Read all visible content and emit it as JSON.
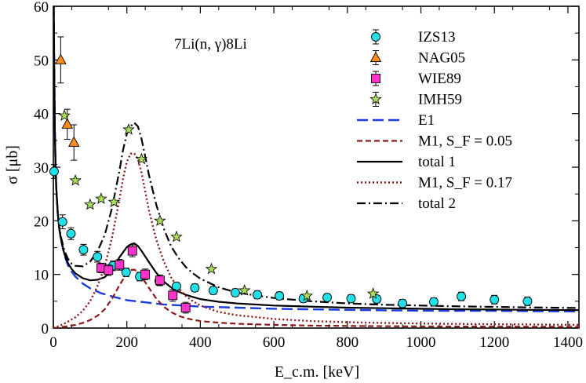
{
  "chart_data": {
    "type": "scatter",
    "annotation": "7Li(n, γ)8Li",
    "xlabel": "E_c.m. [keV]",
    "ylabel": "σ [μb]",
    "xlim": [
      0,
      1430
    ],
    "ylim": [
      0,
      60
    ],
    "x_ticks": [
      0,
      200,
      400,
      600,
      800,
      1000,
      1200,
      1400
    ],
    "y_ticks": [
      0,
      10,
      20,
      30,
      40,
      50,
      60
    ],
    "grid": false,
    "legend_position": "top-right",
    "legend": [
      {
        "label": "IZS13",
        "marker": "circle"
      },
      {
        "label": "NAG05",
        "marker": "triangle"
      },
      {
        "label": "WIE89",
        "marker": "square"
      },
      {
        "label": "IMH59",
        "marker": "star"
      },
      {
        "label": "E1",
        "line": "long-dash"
      },
      {
        "label": "M1, S_F = 0.05",
        "line": "dash"
      },
      {
        "label": "total 1",
        "line": "solid"
      },
      {
        "label": "M1, S_F = 0.17",
        "line": "dot"
      },
      {
        "label": "total 2",
        "line": "dash-dot"
      }
    ],
    "series": [
      {
        "name": "IZS13",
        "kind": "points",
        "marker": "circle",
        "color": "#22e0e6",
        "points": [
          {
            "x": 2,
            "y": 29.2,
            "err": 1.3
          },
          {
            "x": 25,
            "y": 19.8,
            "err": 1.3
          },
          {
            "x": 48,
            "y": 17.6,
            "err": 1.1
          },
          {
            "x": 82,
            "y": 14.6,
            "err": 1.0
          },
          {
            "x": 120,
            "y": 13.3,
            "err": 1.0
          },
          {
            "x": 162,
            "y": 11.6,
            "err": 0.9
          },
          {
            "x": 198,
            "y": 10.4,
            "err": 0.8
          },
          {
            "x": 235,
            "y": 9.6,
            "err": 0.8
          },
          {
            "x": 288,
            "y": 8.8,
            "err": 0.8
          },
          {
            "x": 335,
            "y": 7.8,
            "err": 0.7
          },
          {
            "x": 385,
            "y": 7.5,
            "err": 0.7
          },
          {
            "x": 435,
            "y": 7.0,
            "err": 0.7
          },
          {
            "x": 495,
            "y": 6.6,
            "err": 0.7
          },
          {
            "x": 555,
            "y": 6.2,
            "err": 0.7
          },
          {
            "x": 615,
            "y": 6.0,
            "err": 0.7
          },
          {
            "x": 680,
            "y": 5.5,
            "err": 0.7
          },
          {
            "x": 745,
            "y": 5.7,
            "err": 0.7
          },
          {
            "x": 810,
            "y": 5.5,
            "err": 0.7
          },
          {
            "x": 880,
            "y": 5.4,
            "err": 0.7
          },
          {
            "x": 950,
            "y": 4.6,
            "err": 0.7
          },
          {
            "x": 1035,
            "y": 4.9,
            "err": 0.7
          },
          {
            "x": 1110,
            "y": 5.9,
            "err": 0.8
          },
          {
            "x": 1200,
            "y": 5.3,
            "err": 0.8
          },
          {
            "x": 1290,
            "y": 5.0,
            "err": 0.8
          }
        ]
      },
      {
        "name": "NAG05",
        "kind": "points",
        "marker": "triangle",
        "color": "#ff8c1a",
        "points": [
          {
            "x": 20,
            "y": 50.0,
            "err": 4.3
          },
          {
            "x": 38,
            "y": 38.0,
            "err": 2.8
          },
          {
            "x": 56,
            "y": 34.6,
            "err": 3.3
          }
        ]
      },
      {
        "name": "WIE89",
        "kind": "points",
        "marker": "square",
        "color": "#ff33cc",
        "points": [
          {
            "x": 130,
            "y": 11.2,
            "err": 0.9
          },
          {
            "x": 150,
            "y": 10.8,
            "err": 1.0
          },
          {
            "x": 180,
            "y": 11.8,
            "err": 1.0
          },
          {
            "x": 215,
            "y": 14.4,
            "err": 1.1
          },
          {
            "x": 250,
            "y": 10.0,
            "err": 1.0
          },
          {
            "x": 290,
            "y": 8.9,
            "err": 1.0
          },
          {
            "x": 325,
            "y": 6.1,
            "err": 1.1
          },
          {
            "x": 360,
            "y": 3.8,
            "err": 1.0
          }
        ]
      },
      {
        "name": "IMH59",
        "kind": "points",
        "marker": "star",
        "color": "#a8dc5a",
        "points": [
          {
            "x": 30,
            "y": 39.6
          },
          {
            "x": 60,
            "y": 27.5
          },
          {
            "x": 100,
            "y": 23.0
          },
          {
            "x": 130,
            "y": 24.1
          },
          {
            "x": 165,
            "y": 23.5
          },
          {
            "x": 205,
            "y": 37.0
          },
          {
            "x": 240,
            "y": 31.5
          },
          {
            "x": 290,
            "y": 20.0
          },
          {
            "x": 335,
            "y": 17.0
          },
          {
            "x": 430,
            "y": 11.0
          },
          {
            "x": 520,
            "y": 7.0
          },
          {
            "x": 690,
            "y": 6.0
          },
          {
            "x": 870,
            "y": 6.4
          }
        ]
      },
      {
        "name": "E1",
        "kind": "line",
        "dash": "long-dash",
        "color": "#1a3be0",
        "x": [
          1,
          2,
          4,
          6,
          8,
          12,
          16,
          20,
          30,
          40,
          50,
          60,
          80,
          100,
          130,
          160,
          200,
          250,
          300,
          400,
          500,
          600,
          700,
          800,
          900,
          1000,
          1100,
          1200,
          1300,
          1430
        ],
        "y": [
          60.0,
          52.5,
          37.1,
          30.3,
          26.2,
          21.4,
          18.6,
          16.7,
          13.6,
          11.7,
          10.5,
          9.6,
          8.3,
          7.4,
          6.5,
          5.9,
          5.2,
          4.8,
          4.4,
          4.0,
          3.8,
          3.6,
          3.5,
          3.4,
          3.3,
          3.25,
          3.2,
          3.2,
          3.15,
          3.1
        ]
      },
      {
        "name": "M1, S_F = 0.05",
        "kind": "line",
        "dash": "dash",
        "color": "#8b1a1a",
        "x": [
          0,
          20,
          40,
          60,
          80,
          100,
          120,
          140,
          160,
          180,
          200,
          210,
          220,
          230,
          240,
          260,
          280,
          300,
          320,
          340,
          360,
          380,
          400,
          450,
          500,
          600,
          700,
          800,
          900,
          1000,
          1100,
          1200,
          1300,
          1430
        ],
        "y": [
          0.0,
          0.15,
          0.35,
          0.6,
          0.95,
          1.5,
          2.3,
          3.5,
          5.5,
          8.0,
          10.2,
          10.8,
          10.9,
          10.5,
          9.6,
          7.5,
          5.5,
          4.0,
          3.0,
          2.3,
          1.85,
          1.55,
          1.3,
          1.0,
          0.8,
          0.6,
          0.45,
          0.4,
          0.35,
          0.3,
          0.28,
          0.26,
          0.25,
          0.22
        ]
      },
      {
        "name": "total 1",
        "kind": "line",
        "dash": "solid",
        "color": "#000000",
        "x": [
          1,
          2,
          4,
          6,
          8,
          12,
          16,
          20,
          30,
          40,
          50,
          60,
          80,
          100,
          120,
          140,
          160,
          180,
          200,
          210,
          220,
          230,
          240,
          260,
          280,
          300,
          320,
          340,
          360,
          380,
          400,
          450,
          500,
          600,
          700,
          800,
          900,
          1000,
          1100,
          1200,
          1300,
          1430
        ],
        "y": [
          60.0,
          52.5,
          37.1,
          30.3,
          26.2,
          21.4,
          18.6,
          16.8,
          13.8,
          12.1,
          11.0,
          10.2,
          9.3,
          8.9,
          9.0,
          9.5,
          11.0,
          13.2,
          15.1,
          15.6,
          15.8,
          15.3,
          14.4,
          12.3,
          10.3,
          8.7,
          7.6,
          6.8,
          6.2,
          5.8,
          5.4,
          4.9,
          4.6,
          4.2,
          4.0,
          3.8,
          3.7,
          3.6,
          3.5,
          3.45,
          3.4,
          3.35
        ]
      },
      {
        "name": "M1, S_F = 0.17",
        "kind": "line",
        "dash": "dot",
        "color": "#8b1a1a",
        "x": [
          0,
          20,
          40,
          60,
          80,
          100,
          120,
          140,
          160,
          180,
          190,
          200,
          210,
          220,
          230,
          240,
          250,
          260,
          280,
          300,
          320,
          340,
          360,
          380,
          400,
          450,
          500,
          600,
          700,
          800,
          900,
          1000,
          1100,
          1200,
          1300,
          1430
        ],
        "y": [
          0.0,
          0.5,
          1.2,
          2.0,
          3.2,
          5.0,
          7.8,
          11.5,
          17.0,
          24.0,
          28.0,
          31.0,
          32.5,
          32.6,
          31.5,
          29.0,
          25.5,
          22.0,
          16.5,
          12.5,
          9.5,
          7.5,
          6.0,
          5.0,
          4.2,
          3.0,
          2.4,
          1.7,
          1.3,
          1.1,
          0.95,
          0.85,
          0.78,
          0.72,
          0.67,
          0.6
        ]
      },
      {
        "name": "total 2",
        "kind": "line",
        "dash": "dash-dot",
        "color": "#000000",
        "x": [
          1,
          2,
          4,
          6,
          8,
          12,
          16,
          20,
          30,
          40,
          50,
          60,
          80,
          100,
          120,
          140,
          160,
          180,
          190,
          200,
          210,
          220,
          230,
          240,
          250,
          260,
          280,
          300,
          320,
          340,
          360,
          380,
          400,
          450,
          500,
          600,
          700,
          800,
          900,
          1000,
          1100,
          1200,
          1300,
          1430
        ],
        "y": [
          60.0,
          52.6,
          37.2,
          30.4,
          26.3,
          21.6,
          18.9,
          17.2,
          14.4,
          12.9,
          12.0,
          11.6,
          11.5,
          12.4,
          14.3,
          17.4,
          22.5,
          29.4,
          33.3,
          36.2,
          37.6,
          38.3,
          37.6,
          35.3,
          32.0,
          28.6,
          23.0,
          18.6,
          15.3,
          13.1,
          11.4,
          10.2,
          9.2,
          7.6,
          6.6,
          5.6,
          5.0,
          4.6,
          4.35,
          4.2,
          4.05,
          3.95,
          3.85,
          3.75
        ]
      }
    ]
  }
}
